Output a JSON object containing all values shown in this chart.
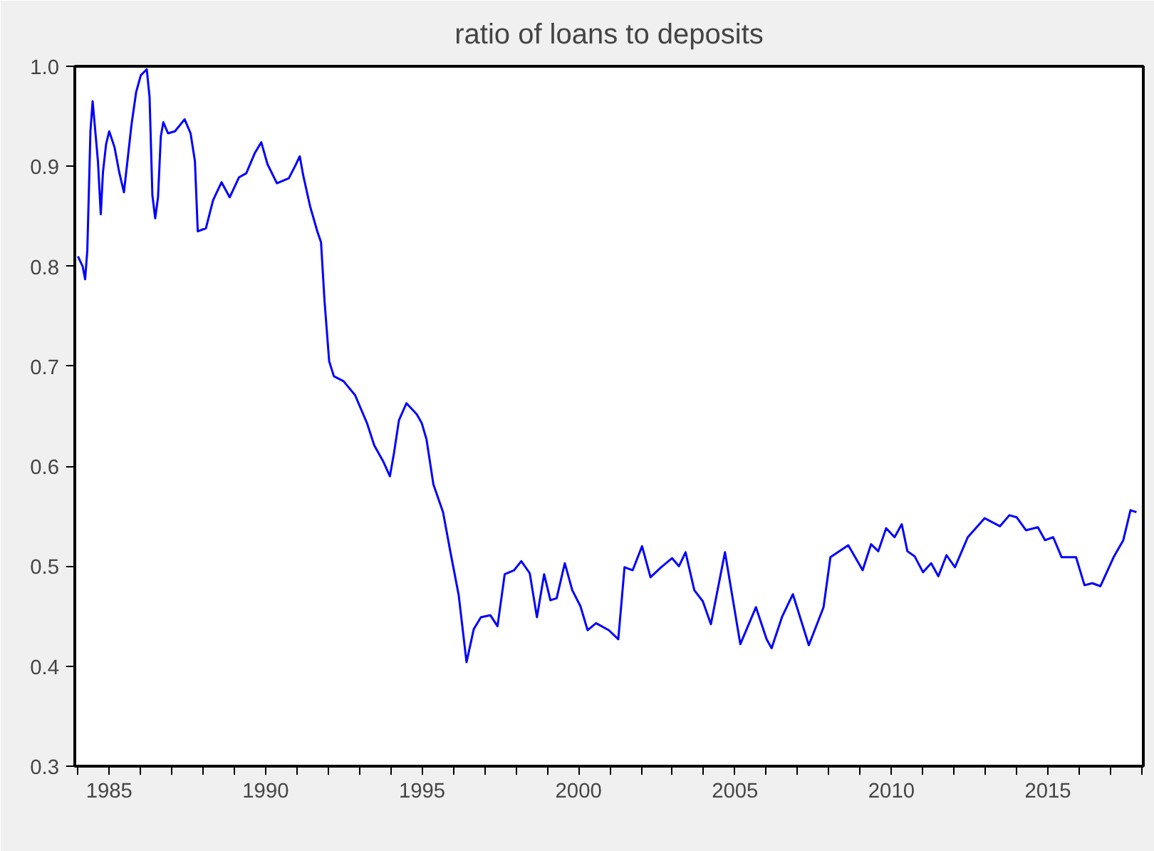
{
  "chart_data": {
    "type": "line",
    "title": "ratio of loans to deposits",
    "x": [
      1984.0,
      1984.15,
      1984.23,
      1984.3,
      1984.35,
      1984.4,
      1984.47,
      1984.53,
      1984.64,
      1984.73,
      1984.8,
      1984.9,
      1985.0,
      1985.17,
      1985.32,
      1985.47,
      1985.6,
      1985.71,
      1985.86,
      1986.01,
      1986.2,
      1986.29,
      1986.38,
      1986.47,
      1986.56,
      1986.65,
      1986.73,
      1986.88,
      1987.1,
      1987.41,
      1987.6,
      1987.74,
      1987.83,
      1988.09,
      1988.32,
      1988.59,
      1988.85,
      1989.15,
      1989.38,
      1989.65,
      1989.86,
      1990.06,
      1990.36,
      1990.74,
      1990.97,
      1991.09,
      1991.2,
      1991.42,
      1991.65,
      1991.77,
      1991.88,
      1992.03,
      1992.18,
      1992.49,
      1992.86,
      1993.24,
      1993.47,
      1993.77,
      1993.97,
      1994.1,
      1994.26,
      1994.5,
      1994.83,
      1994.99,
      1995.14,
      1995.36,
      1995.67,
      1995.9,
      1996.17,
      1996.42,
      1996.65,
      1996.88,
      1997.18,
      1997.41,
      1997.64,
      1997.94,
      1998.17,
      1998.44,
      1998.67,
      1998.9,
      1999.1,
      1999.3,
      1999.56,
      1999.8,
      2000.06,
      2000.29,
      2000.56,
      2000.97,
      2001.27,
      2001.47,
      2001.73,
      2002.03,
      2002.3,
      2002.64,
      2002.99,
      2003.21,
      2003.42,
      2003.7,
      2003.97,
      2004.23,
      2004.68,
      2005.17,
      2005.67,
      2006.01,
      2006.17,
      2006.5,
      2006.85,
      2007.36,
      2007.83,
      2008.05,
      2008.62,
      2009.08,
      2009.35,
      2009.58,
      2009.83,
      2010.1,
      2010.33,
      2010.51,
      2010.74,
      2011.01,
      2011.27,
      2011.5,
      2011.76,
      2012.03,
      2012.44,
      2012.98,
      2013.47,
      2013.77,
      2014.0,
      2014.3,
      2014.68,
      2014.91,
      2015.17,
      2015.44,
      2015.9,
      2016.17,
      2016.42,
      2016.68,
      2017.1,
      2017.41,
      2017.64,
      2017.83
    ],
    "series": [
      {
        "color": "#0000ff",
        "values": [
          0.81,
          0.8,
          0.787,
          0.816,
          0.875,
          0.935,
          0.965,
          0.944,
          0.905,
          0.852,
          0.894,
          0.922,
          0.935,
          0.919,
          0.894,
          0.874,
          0.91,
          0.941,
          0.974,
          0.991,
          0.997,
          0.969,
          0.871,
          0.848,
          0.869,
          0.93,
          0.944,
          0.933,
          0.935,
          0.947,
          0.933,
          0.905,
          0.835,
          0.838,
          0.866,
          0.884,
          0.869,
          0.889,
          0.893,
          0.913,
          0.924,
          0.902,
          0.883,
          0.888,
          0.902,
          0.91,
          0.891,
          0.86,
          0.835,
          0.824,
          0.766,
          0.705,
          0.69,
          0.685,
          0.671,
          0.643,
          0.621,
          0.604,
          0.59,
          0.613,
          0.646,
          0.663,
          0.652,
          0.643,
          0.627,
          0.582,
          0.554,
          0.515,
          0.471,
          0.404,
          0.437,
          0.449,
          0.451,
          0.44,
          0.492,
          0.496,
          0.505,
          0.493,
          0.449,
          0.492,
          0.466,
          0.468,
          0.503,
          0.476,
          0.46,
          0.436,
          0.443,
          0.436,
          0.427,
          0.499,
          0.496,
          0.52,
          0.489,
          0.499,
          0.508,
          0.5,
          0.514,
          0.476,
          0.465,
          0.442,
          0.514,
          0.422,
          0.459,
          0.427,
          0.418,
          0.449,
          0.472,
          0.421,
          0.459,
          0.509,
          0.521,
          0.496,
          0.522,
          0.515,
          0.538,
          0.529,
          0.542,
          0.515,
          0.51,
          0.494,
          0.503,
          0.49,
          0.511,
          0.499,
          0.529,
          0.548,
          0.54,
          0.551,
          0.549,
          0.536,
          0.539,
          0.526,
          0.529,
          0.509,
          0.509,
          0.481,
          0.483,
          0.48,
          0.509,
          0.526,
          0.556,
          0.554
        ]
      }
    ],
    "xlim": [
      1983.9,
      2018.05
    ],
    "xticks": [
      {
        "value": 1984,
        "label": null
      },
      1985,
      {
        "value": 1986,
        "label": null
      },
      {
        "value": 1987,
        "label": null
      },
      {
        "value": 1988,
        "label": null
      },
      {
        "value": 1989,
        "label": null
      },
      1990,
      {
        "value": 1991,
        "label": null
      },
      {
        "value": 1992,
        "label": null
      },
      {
        "value": 1993,
        "label": null
      },
      {
        "value": 1994,
        "label": null
      },
      1995,
      {
        "value": 1996,
        "label": null
      },
      {
        "value": 1997,
        "label": null
      },
      {
        "value": 1998,
        "label": null
      },
      {
        "value": 1999,
        "label": null
      },
      2000,
      {
        "value": 2001,
        "label": null
      },
      {
        "value": 2002,
        "label": null
      },
      {
        "value": 2003,
        "label": null
      },
      {
        "value": 2004,
        "label": null
      },
      2005,
      {
        "value": 2006,
        "label": null
      },
      {
        "value": 2007,
        "label": null
      },
      {
        "value": 2008,
        "label": null
      },
      {
        "value": 2009,
        "label": null
      },
      2010,
      {
        "value": 2011,
        "label": null
      },
      {
        "value": 2012,
        "label": null
      },
      {
        "value": 2013,
        "label": null
      },
      {
        "value": 2014,
        "label": null
      },
      2015,
      {
        "value": 2016,
        "label": null
      },
      {
        "value": 2017,
        "label": null
      },
      {
        "value": 2018,
        "label": null
      }
    ],
    "ylim": [
      0.3,
      1.0
    ],
    "yticks": [
      0.3,
      0.4,
      0.5,
      0.6,
      0.7,
      0.8,
      0.9,
      {
        "value": 1,
        "label": "1.0"
      }
    ],
    "line_style": "solid"
  }
}
